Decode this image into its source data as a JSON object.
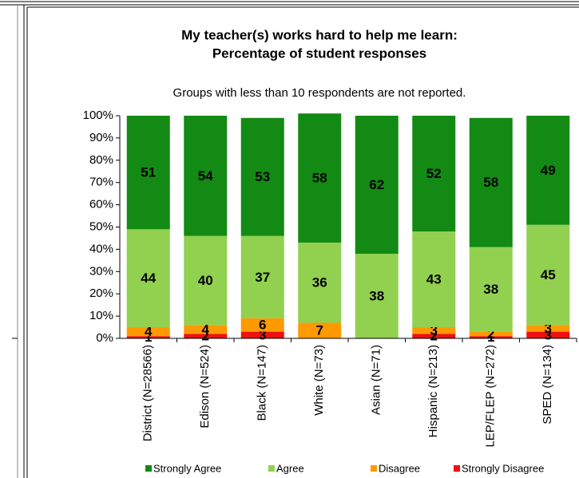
{
  "chart_data": {
    "type": "stacked_bar",
    "title": "My teacher(s) works hard to help me learn:",
    "subtitle": "Percentage of student responses",
    "note": "Groups with less than 10 respondents are not reported.",
    "categories": [
      "District (N=28566)",
      "Edison (N=524)",
      "Black (N=147)",
      "White (N=73)",
      "Asian (N=71)",
      "Hispanic (N=213)",
      "LEP/FLEP (N=272)",
      "SPED (N=134)"
    ],
    "series": [
      {
        "name": "Strongly Disagree",
        "color": "#ee1111",
        "values": [
          1,
          2,
          3,
          null,
          null,
          2,
          1,
          3
        ]
      },
      {
        "name": "Disagree",
        "color": "#ff9900",
        "values": [
          4,
          4,
          6,
          7,
          null,
          3,
          2,
          3
        ]
      },
      {
        "name": "Agree",
        "color": "#92d050",
        "values": [
          44,
          40,
          37,
          36,
          38,
          43,
          38,
          45
        ]
      },
      {
        "name": "Strongly Agree",
        "color": "#138a13",
        "values": [
          51,
          54,
          53,
          58,
          62,
          52,
          58,
          49
        ]
      }
    ],
    "legend_order": [
      3,
      2,
      1,
      0
    ],
    "ylim": [
      0,
      100
    ],
    "yticks": [
      {
        "value": 0,
        "label": "0%"
      },
      {
        "value": 10,
        "label": "10%"
      },
      {
        "value": 20,
        "label": "20%"
      },
      {
        "value": 30,
        "label": "30%"
      },
      {
        "value": 40,
        "label": "40%"
      },
      {
        "value": 50,
        "label": "50%"
      },
      {
        "value": 60,
        "label": "60%"
      },
      {
        "value": 70,
        "label": "70%"
      },
      {
        "value": 80,
        "label": "80%"
      },
      {
        "value": 90,
        "label": "90%"
      },
      {
        "value": 100,
        "label": "100%"
      }
    ],
    "legend": "bottom"
  }
}
